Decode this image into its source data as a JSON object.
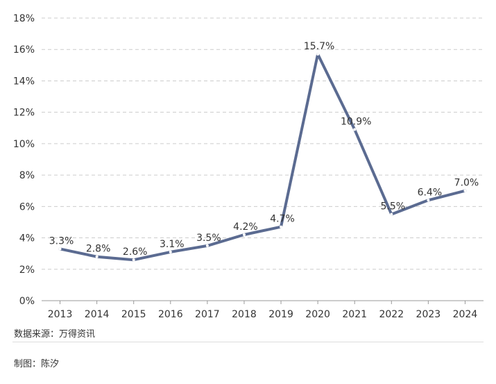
{
  "chart_data": {
    "type": "line",
    "categories": [
      "2013",
      "2014",
      "2015",
      "2016",
      "2017",
      "2018",
      "2019",
      "2020",
      "2021",
      "2022",
      "2023",
      "2024"
    ],
    "series": [
      {
        "values": [
          3.3,
          2.8,
          2.6,
          3.1,
          3.5,
          4.2,
          4.7,
          15.7,
          10.9,
          5.5,
          6.4,
          7.0
        ]
      }
    ],
    "data_labels": [
      "3.3%",
      "2.8%",
      "2.6%",
      "3.1%",
      "3.5%",
      "4.2%",
      "4.7%",
      "15.7%",
      "10.9%",
      "5.5%",
      "6.4%",
      "7.0%"
    ],
    "y_ticks": [
      "0%",
      "2%",
      "4%",
      "6%",
      "8%",
      "10%",
      "12%",
      "14%",
      "16%",
      "18%"
    ],
    "ylim": [
      0,
      18
    ],
    "y_step": 2,
    "grid": true,
    "line_color": "#5b6b91",
    "grid_color": "#cccccc"
  },
  "source_text": "数据来源：万得资讯",
  "credit_text": "制图：陈汐"
}
